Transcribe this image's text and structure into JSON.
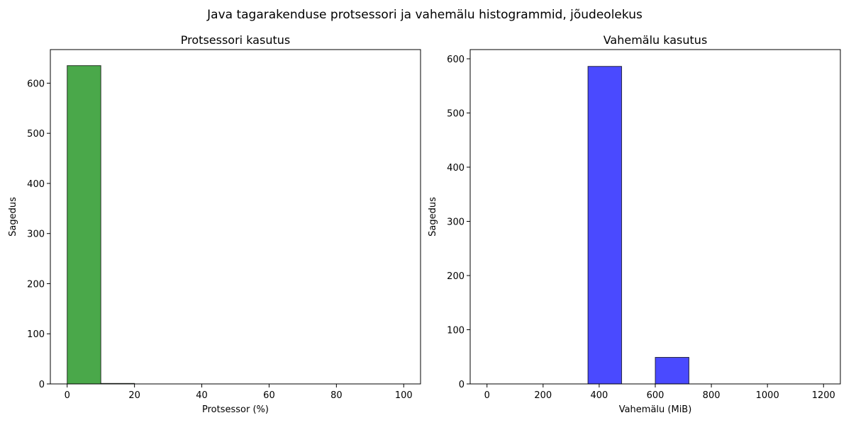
{
  "figure": {
    "suptitle": "Java tagarakenduse protsessori ja vahemälu histogrammid, jõudeolekus"
  },
  "chart_data": [
    {
      "type": "bar",
      "title": "Protsessori kasutus",
      "xlabel": "Protsessor (%)",
      "ylabel": "Sagedus",
      "xlim": [
        -5,
        105
      ],
      "ylim": [
        0,
        667
      ],
      "xticks": [
        0,
        20,
        40,
        60,
        80,
        100
      ],
      "yticks": [
        0,
        100,
        200,
        300,
        400,
        500,
        600
      ],
      "bins": [
        {
          "x0": 0,
          "x1": 10,
          "count": 635
        },
        {
          "x0": 10,
          "x1": 20,
          "count": 1
        },
        {
          "x0": 20,
          "x1": 30,
          "count": 0
        },
        {
          "x0": 30,
          "x1": 40,
          "count": 0
        },
        {
          "x0": 40,
          "x1": 50,
          "count": 0
        },
        {
          "x0": 50,
          "x1": 60,
          "count": 0
        },
        {
          "x0": 60,
          "x1": 70,
          "count": 0
        },
        {
          "x0": 70,
          "x1": 80,
          "count": 0
        },
        {
          "x0": 80,
          "x1": 90,
          "count": 0
        },
        {
          "x0": 90,
          "x1": 100,
          "count": 0
        }
      ],
      "color": "#4aa84a",
      "edgecolor": "#000000",
      "grid": false
    },
    {
      "type": "bar",
      "title": "Vahemälu kasutus",
      "xlabel": "Vahemälu (MiB)",
      "ylabel": "Sagedus",
      "xlim": [
        -60,
        1260
      ],
      "ylim": [
        0,
        617
      ],
      "xticks": [
        0,
        200,
        400,
        600,
        800,
        1000,
        1200
      ],
      "yticks": [
        0,
        100,
        200,
        300,
        400,
        500,
        600
      ],
      "bins": [
        {
          "x0": 0,
          "x1": 120,
          "count": 0
        },
        {
          "x0": 120,
          "x1": 240,
          "count": 0
        },
        {
          "x0": 240,
          "x1": 360,
          "count": 0
        },
        {
          "x0": 360,
          "x1": 480,
          "count": 586
        },
        {
          "x0": 480,
          "x1": 600,
          "count": 0
        },
        {
          "x0": 600,
          "x1": 720,
          "count": 49
        },
        {
          "x0": 720,
          "x1": 840,
          "count": 0
        },
        {
          "x0": 840,
          "x1": 960,
          "count": 0
        },
        {
          "x0": 960,
          "x1": 1080,
          "count": 0
        },
        {
          "x0": 1080,
          "x1": 1200,
          "count": 0
        }
      ],
      "color": "#4a4aff",
      "edgecolor": "#000000",
      "grid": false
    }
  ]
}
